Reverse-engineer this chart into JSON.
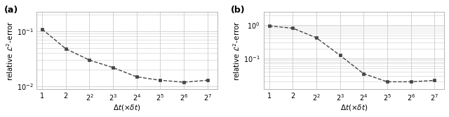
{
  "panel_a": {
    "label": "(a)",
    "x": [
      1,
      2,
      4,
      8,
      16,
      32,
      64,
      128
    ],
    "y": [
      0.108,
      0.048,
      0.03,
      0.022,
      0.015,
      0.013,
      0.012,
      0.013
    ],
    "ylim": [
      0.009,
      0.22
    ],
    "yticks": [
      0.01,
      0.1
    ],
    "ytick_labels": [
      "$10^{-2}$",
      "$10^{-1}$"
    ],
    "ylabel": "relative $\\mathcal{L}^2$-error",
    "xlabel": "$\\Delta t(\\times\\delta t)$",
    "xtick_labels": [
      "1",
      "2",
      "$2^2$",
      "$2^3$",
      "$2^4$",
      "$2^5$",
      "$2^6$",
      "$2^7$"
    ]
  },
  "panel_b": {
    "label": "(b)",
    "x": [
      1,
      2,
      4,
      8,
      16,
      32,
      64,
      128
    ],
    "y": [
      0.95,
      0.82,
      0.42,
      0.125,
      0.035,
      0.02,
      0.02,
      0.022
    ],
    "ylim": [
      0.012,
      2.5
    ],
    "yticks": [
      0.1,
      1.0
    ],
    "ytick_labels": [
      "$10^{-1}$",
      "$10^{0}$"
    ],
    "ylabel": "relative $\\mathcal{L}^2$-error",
    "xlabel": "$\\Delta t(\\times\\delta t)$",
    "xtick_labels": [
      "1",
      "2",
      "$2^2$",
      "$2^3$",
      "$2^4$",
      "$2^5$",
      "$2^6$",
      "$2^7$"
    ]
  },
  "line_color": "#444444",
  "marker": "s",
  "markersize": 3.5,
  "linewidth": 1.0,
  "linestyle": "--",
  "grid_color": "#cccccc",
  "background_color": "#ffffff",
  "spine_color": "#aaaaaa",
  "tick_label_fontsize": 7,
  "axis_label_fontsize": 7.5,
  "panel_label_fontsize": 9
}
